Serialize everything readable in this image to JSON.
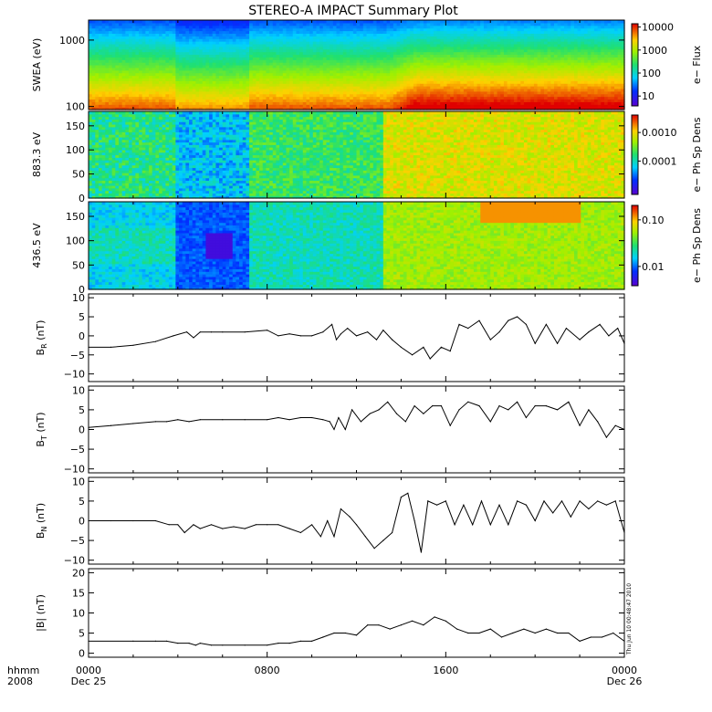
{
  "chart_data": {
    "type": "line",
    "title": "STEREO-A IMPACT Summary Plot",
    "x_axis": {
      "row1_label": "hhmm",
      "row2_label": "2008",
      "ticks": [
        {
          "hours": 0,
          "time": "0000",
          "date": "Dec 25"
        },
        {
          "hours": 8,
          "time": "0800",
          "date": ""
        },
        {
          "hours": 16,
          "time": "1600",
          "date": ""
        },
        {
          "hours": 24,
          "time": "0000",
          "date": "Dec 26"
        }
      ],
      "range_hours": [
        0,
        24
      ]
    },
    "panels": [
      {
        "id": "swea",
        "type": "heatmap",
        "ylabel": "SWEA (eV)",
        "yscale": "log",
        "ylim": [
          90,
          2000
        ],
        "yticks": [
          100,
          1000
        ],
        "ytick_labels": [
          "100",
          "1000"
        ],
        "colorbar_label": "e− Flux",
        "colorbar_ticks": [
          "10",
          "100",
          "1000",
          "10000"
        ],
        "colorbar_scale": "log"
      },
      {
        "id": "pad_883",
        "type": "heatmap",
        "ylabel": "883.3 eV",
        "ylim": [
          0,
          180
        ],
        "yticks": [
          0,
          50,
          100,
          150
        ],
        "ytick_labels": [
          "0",
          "50",
          "100",
          "150"
        ],
        "colorbar_label": "e− Ph Sp Dens",
        "colorbar_ticks": [
          "0.0001",
          "0.0010"
        ],
        "colorbar_scale": "log"
      },
      {
        "id": "pad_436",
        "type": "heatmap",
        "ylabel": "436.5 eV",
        "ylim": [
          0,
          180
        ],
        "yticks": [
          0,
          50,
          100,
          150
        ],
        "ytick_labels": [
          "0",
          "50",
          "100",
          "150"
        ],
        "colorbar_label": "e− Ph Sp Dens",
        "colorbar_ticks": [
          "0.01",
          "0.10"
        ],
        "colorbar_scale": "log"
      },
      {
        "id": "br",
        "type": "line",
        "ylabel_main": "B",
        "ylabel_sub": "R",
        "ylabel_unit": " (nT)",
        "ylim": [
          -12,
          11
        ],
        "yticks": [
          -10,
          -5,
          0,
          5,
          10
        ],
        "ytick_labels": [
          "−10",
          "−5",
          "0",
          "5",
          "10"
        ],
        "x": [
          0,
          1,
          2,
          3,
          3.8,
          4.4,
          4.7,
          5,
          5.5,
          6,
          7,
          8,
          8.5,
          9,
          9.5,
          10,
          10.5,
          10.9,
          11.1,
          11.3,
          11.6,
          12,
          12.5,
          12.9,
          13.2,
          13.6,
          14,
          14.5,
          15,
          15.3,
          15.8,
          16.2,
          16.6,
          17,
          17.5,
          18,
          18.4,
          18.8,
          19.2,
          19.6,
          20,
          20.5,
          21,
          21.4,
          22,
          22.4,
          22.9,
          23.3,
          23.7,
          24
        ],
        "y": [
          -3,
          -3,
          -2.5,
          -1.5,
          0,
          1,
          -0.5,
          1,
          1,
          1,
          1,
          1.5,
          0,
          0.5,
          0,
          0,
          1,
          3,
          -1,
          0.5,
          2,
          0,
          1,
          -1,
          1.5,
          -1,
          -3,
          -5,
          -3,
          -6,
          -3,
          -4,
          3,
          2,
          4,
          -1,
          1,
          4,
          5,
          3,
          -2,
          3,
          -2,
          2,
          -1,
          1,
          3,
          0,
          2,
          -2
        ]
      },
      {
        "id": "bt",
        "type": "line",
        "ylabel_main": "B",
        "ylabel_sub": "T",
        "ylabel_unit": " (nT)",
        "ylim": [
          -11,
          11
        ],
        "yticks": [
          -10,
          -5,
          0,
          5,
          10
        ],
        "ytick_labels": [
          "−10",
          "−5",
          "0",
          "5",
          "10"
        ],
        "x": [
          0,
          1,
          2,
          3,
          3.5,
          4,
          4.5,
          5,
          6,
          7,
          8,
          8.5,
          9,
          9.5,
          10,
          10.5,
          10.8,
          11,
          11.2,
          11.5,
          11.8,
          12.2,
          12.6,
          13,
          13.4,
          13.8,
          14.2,
          14.6,
          15,
          15.4,
          15.8,
          16.2,
          16.6,
          17,
          17.5,
          18,
          18.4,
          18.8,
          19.2,
          19.6,
          20,
          20.5,
          21,
          21.5,
          22,
          22.4,
          22.8,
          23.2,
          23.6,
          24
        ],
        "y": [
          0.5,
          1,
          1.5,
          2,
          2,
          2.5,
          2,
          2.5,
          2.5,
          2.5,
          2.5,
          3,
          2.5,
          3,
          3,
          2.5,
          2,
          0,
          3,
          0,
          5,
          2,
          4,
          5,
          7,
          4,
          2,
          6,
          4,
          6,
          6,
          1,
          5,
          7,
          6,
          2,
          6,
          5,
          7,
          3,
          6,
          6,
          5,
          7,
          1,
          5,
          2,
          -2,
          1,
          0
        ]
      },
      {
        "id": "bn",
        "type": "line",
        "ylabel_main": "B",
        "ylabel_sub": "N",
        "ylabel_unit": " (nT)",
        "ylim": [
          -11,
          11
        ],
        "yticks": [
          -10,
          -5,
          0,
          5,
          10
        ],
        "ytick_labels": [
          "−10",
          "−5",
          "0",
          "5",
          "10"
        ],
        "x": [
          0,
          1,
          2,
          3,
          3.6,
          4,
          4.3,
          4.7,
          5,
          5.5,
          6,
          6.5,
          7,
          7.5,
          8,
          8.5,
          9,
          9.5,
          10,
          10.4,
          10.7,
          11,
          11.3,
          11.7,
          12,
          12.4,
          12.8,
          13.2,
          13.6,
          14,
          14.3,
          14.6,
          14.9,
          15.2,
          15.6,
          16,
          16.4,
          16.8,
          17.2,
          17.6,
          18,
          18.4,
          18.8,
          19.2,
          19.6,
          20,
          20.4,
          20.8,
          21.2,
          21.6,
          22,
          22.4,
          22.8,
          23.2,
          23.6,
          24
        ],
        "y": [
          0,
          0,
          0,
          0,
          -1,
          -1,
          -3,
          -1,
          -2,
          -1,
          -2,
          -1.5,
          -2,
          -1,
          -1,
          -1,
          -2,
          -3,
          -1,
          -4,
          0,
          -4,
          3,
          1,
          -1,
          -4,
          -7,
          -5,
          -3,
          6,
          7,
          0,
          -8,
          5,
          4,
          5,
          -1,
          4,
          -1,
          5,
          -1,
          4,
          -1,
          5,
          4,
          0,
          5,
          2,
          5,
          1,
          5,
          3,
          5,
          4,
          5,
          -3
        ]
      },
      {
        "id": "bmag",
        "type": "line",
        "ylabel": "|B| (nT)",
        "ylim": [
          -1,
          21
        ],
        "yticks": [
          0,
          5,
          10,
          15,
          20
        ],
        "ytick_labels": [
          "0",
          "5",
          "10",
          "15",
          "20"
        ],
        "x": [
          0,
          2,
          3,
          3.5,
          4,
          4.5,
          4.8,
          5,
          5.5,
          6,
          7,
          8,
          8.5,
          9,
          9.5,
          10,
          10.5,
          11,
          11.5,
          12,
          12.5,
          13,
          13.5,
          14,
          14.5,
          15,
          15.5,
          16,
          16.5,
          17,
          17.5,
          18,
          18.5,
          19,
          19.5,
          20,
          20.5,
          21,
          21.5,
          22,
          22.5,
          23,
          23.5,
          24
        ],
        "y": [
          3,
          3,
          3,
          3,
          2.5,
          2.5,
          2,
          2.5,
          2,
          2,
          2,
          2,
          2.5,
          2.5,
          3,
          3,
          4,
          5,
          5,
          4.5,
          7,
          7,
          6,
          7,
          8,
          7,
          9,
          8,
          6,
          5,
          5,
          6,
          4,
          5,
          6,
          5,
          6,
          5,
          5,
          3,
          4,
          4,
          5,
          3
        ]
      }
    ],
    "timestamp": "Thu Jun 10 00:48:47 2010"
  }
}
